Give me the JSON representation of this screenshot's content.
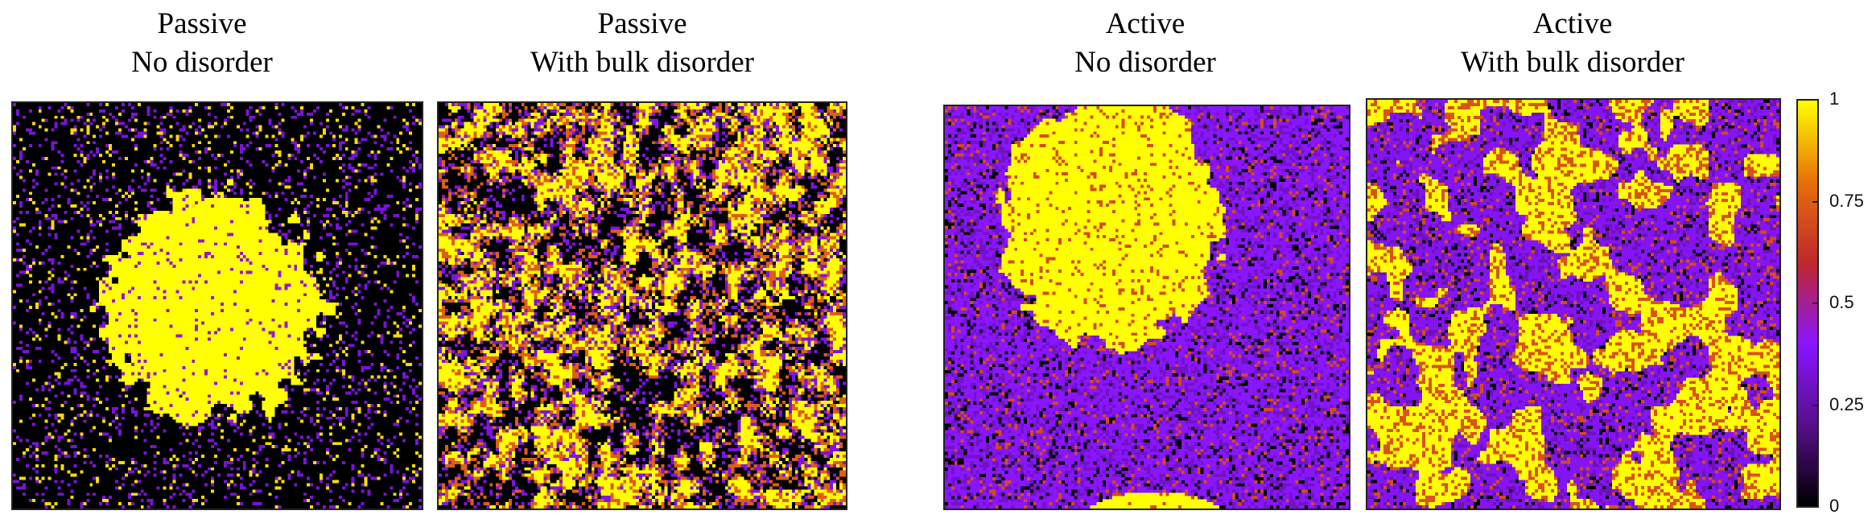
{
  "chart_data": [
    {
      "type": "heatmap",
      "title_line1": "Passive",
      "title_line2": "No disorder",
      "pattern": "single-droplet"
    },
    {
      "type": "heatmap",
      "title_line1": "Passive",
      "title_line2": "With bulk disorder",
      "pattern": "dispersed"
    },
    {
      "type": "heatmap",
      "title_line1": "Active",
      "title_line2": "No disorder",
      "pattern": "droplet-with-periodic-image"
    },
    {
      "type": "heatmap",
      "title_line1": "Active",
      "title_line2": "With bulk disorder",
      "pattern": "percolated-domains"
    }
  ],
  "colorbar": {
    "range": [
      0,
      1
    ],
    "ticks": [
      "1",
      "0.75",
      "0.5",
      "0.25",
      "0"
    ],
    "colors": [
      "#000000",
      "#5a0f8c",
      "#8a15ff",
      "#c0282d",
      "#e8700a",
      "#ffff00"
    ]
  }
}
